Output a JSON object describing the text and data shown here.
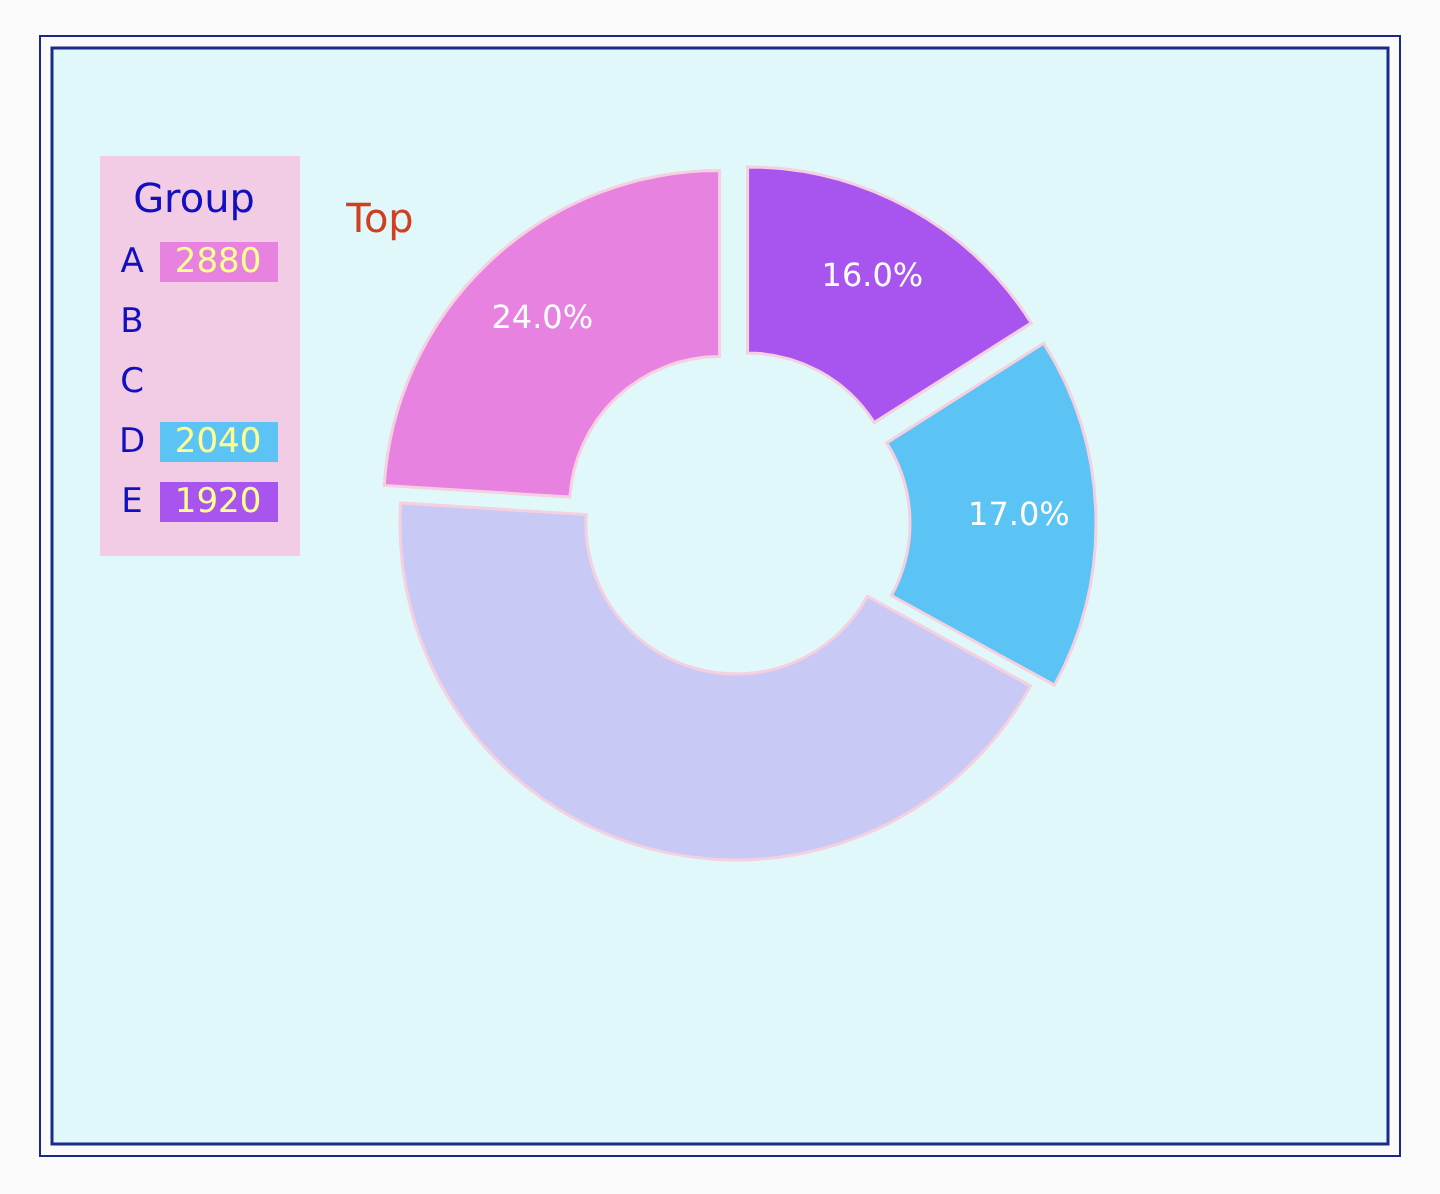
{
  "chart_data": {
    "type": "donut",
    "legend_title": "Group",
    "legend": "top left",
    "categories": [
      "A",
      "B",
      "C",
      null,
      "D",
      "E"
    ],
    "values": [
      24,
      null,
      null,
      43,
      17,
      16
    ],
    "colors": [
      "#e882e0",
      "#f0a0c0",
      "#ffc080",
      "#c8caf5",
      "#5bc4f5",
      "#a855f0"
    ],
    "value_labels": [
      "24.0%",
      null,
      null,
      null,
      "17.0%",
      "16.0%"
    ],
    "annotations": [
      {
        "text": "2880",
        "x": "A"
      },
      {
        "text": "2040",
        "x": "D"
      },
      {
        "text": "1920",
        "x": "E"
      },
      "Top"
    ]
  }
}
